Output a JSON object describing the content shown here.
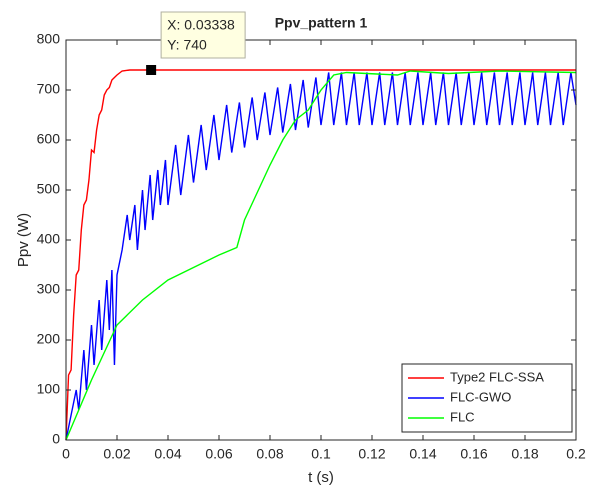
{
  "chart_data": {
    "type": "line",
    "title": "Ppv_pattern 1",
    "xlabel": "t (s)",
    "ylabel": "Ppv (W)",
    "xlim": [
      0,
      0.2
    ],
    "ylim": [
      0,
      800
    ],
    "xticks": [
      0,
      0.02,
      0.04,
      0.06,
      0.08,
      0.1,
      0.12,
      0.14,
      0.16,
      0.18,
      0.2
    ],
    "yticks": [
      0,
      100,
      200,
      300,
      400,
      500,
      600,
      700,
      800
    ],
    "legend": "lower right",
    "series": [
      {
        "name": "Type2 FLC-SSA",
        "color": "#ff0000",
        "x": [
          0,
          0.001,
          0.002,
          0.003,
          0.004,
          0.005,
          0.006,
          0.007,
          0.008,
          0.009,
          0.01,
          0.011,
          0.012,
          0.013,
          0.014,
          0.015,
          0.016,
          0.017,
          0.018,
          0.019,
          0.02,
          0.022,
          0.025,
          0.03,
          0.2
        ],
        "values": [
          0,
          130,
          140,
          250,
          330,
          340,
          420,
          470,
          480,
          520,
          580,
          575,
          620,
          650,
          660,
          690,
          700,
          705,
          720,
          725,
          730,
          738,
          740,
          740,
          740
        ]
      },
      {
        "name": "FLC-GWO",
        "color": "#0000ff",
        "x": [
          0,
          0.004,
          0.005,
          0.007,
          0.008,
          0.01,
          0.011,
          0.013,
          0.014,
          0.016,
          0.017,
          0.018,
          0.019,
          0.02,
          0.022,
          0.024,
          0.025,
          0.027,
          0.028,
          0.03,
          0.031,
          0.033,
          0.034,
          0.036,
          0.037,
          0.039,
          0.04,
          0.043,
          0.045,
          0.048,
          0.05,
          0.053,
          0.055,
          0.058,
          0.06,
          0.063,
          0.065,
          0.068,
          0.07,
          0.073,
          0.075,
          0.078,
          0.08,
          0.083,
          0.085,
          0.088,
          0.09,
          0.093,
          0.095,
          0.098,
          0.1,
          0.103,
          0.105,
          0.108,
          0.11,
          0.113,
          0.115,
          0.118,
          0.12,
          0.123,
          0.125,
          0.128,
          0.13,
          0.133,
          0.135,
          0.138,
          0.14,
          0.143,
          0.145,
          0.148,
          0.15,
          0.153,
          0.155,
          0.158,
          0.16,
          0.163,
          0.165,
          0.168,
          0.17,
          0.173,
          0.175,
          0.178,
          0.18,
          0.183,
          0.185,
          0.188,
          0.19,
          0.193,
          0.195,
          0.198,
          0.2
        ],
        "values": [
          0,
          100,
          60,
          180,
          100,
          230,
          150,
          280,
          180,
          320,
          220,
          340,
          150,
          330,
          380,
          450,
          400,
          470,
          380,
          500,
          420,
          530,
          440,
          540,
          470,
          560,
          470,
          590,
          490,
          610,
          515,
          630,
          540,
          650,
          560,
          670,
          575,
          675,
          585,
          685,
          600,
          695,
          610,
          705,
          615,
          712,
          620,
          720,
          625,
          725,
          630,
          735,
          630,
          735,
          630,
          735,
          630,
          735,
          630,
          735,
          630,
          735,
          630,
          735,
          630,
          735,
          630,
          735,
          630,
          735,
          630,
          735,
          630,
          735,
          630,
          735,
          630,
          735,
          630,
          735,
          630,
          735,
          630,
          735,
          630,
          735,
          630,
          735,
          630,
          735,
          670
        ]
      },
      {
        "name": "FLC",
        "color": "#00ff00",
        "x": [
          0,
          0.01,
          0.02,
          0.03,
          0.04,
          0.05,
          0.06,
          0.067,
          0.07,
          0.08,
          0.085,
          0.09,
          0.095,
          0.1,
          0.105,
          0.11,
          0.13,
          0.135,
          0.15,
          0.17,
          0.2
        ],
        "values": [
          0,
          120,
          230,
          280,
          320,
          345,
          370,
          385,
          440,
          550,
          600,
          640,
          660,
          700,
          730,
          735,
          730,
          738,
          733,
          738,
          735
        ]
      }
    ],
    "datatip": {
      "x": 0.03338,
      "y": 740,
      "x_label": "X: 0.03338",
      "y_label": "Y: 740"
    }
  }
}
